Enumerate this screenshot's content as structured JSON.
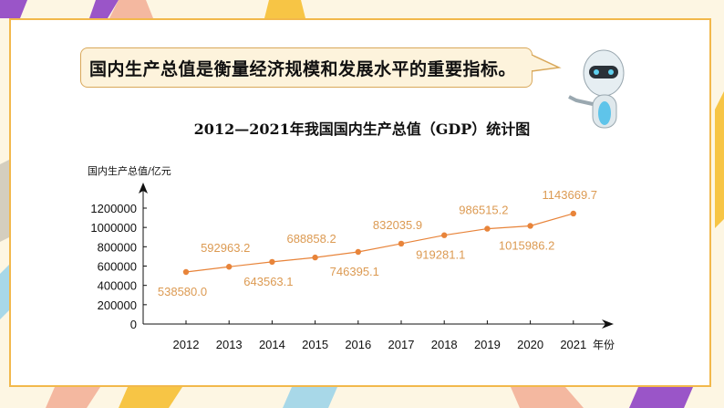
{
  "bubble_text": "国内生产总值是衡量经济规模和发展水平的重要指标。",
  "colors": {
    "accent": "#e8843a",
    "label": "#dc9a52",
    "border": "#f2b84b"
  },
  "chart_data": {
    "type": "line",
    "title": "2012—2021年我国国内生产总值（GDP）统计图",
    "ylabel": "国内生产总值/亿元",
    "xlabel": "年份",
    "categories": [
      "2012",
      "2013",
      "2014",
      "2015",
      "2016",
      "2017",
      "2018",
      "2019",
      "2020",
      "2021"
    ],
    "values": [
      538580.0,
      592963.2,
      643563.1,
      688858.2,
      746395.1,
      832035.9,
      919281.1,
      986515.2,
      1015986.2,
      1143669.7
    ],
    "data_labels": [
      "538580.0",
      "592963.2",
      "643563.1",
      "688858.2",
      "746395.1",
      "832035.9",
      "919281.1",
      "986515.2",
      "1015986.2",
      "1143669.7"
    ],
    "yticks": [
      "0",
      "200000",
      "400000",
      "600000",
      "800000",
      "1000000",
      "1200000"
    ],
    "ylim": [
      0,
      1200000
    ],
    "grid": false
  }
}
